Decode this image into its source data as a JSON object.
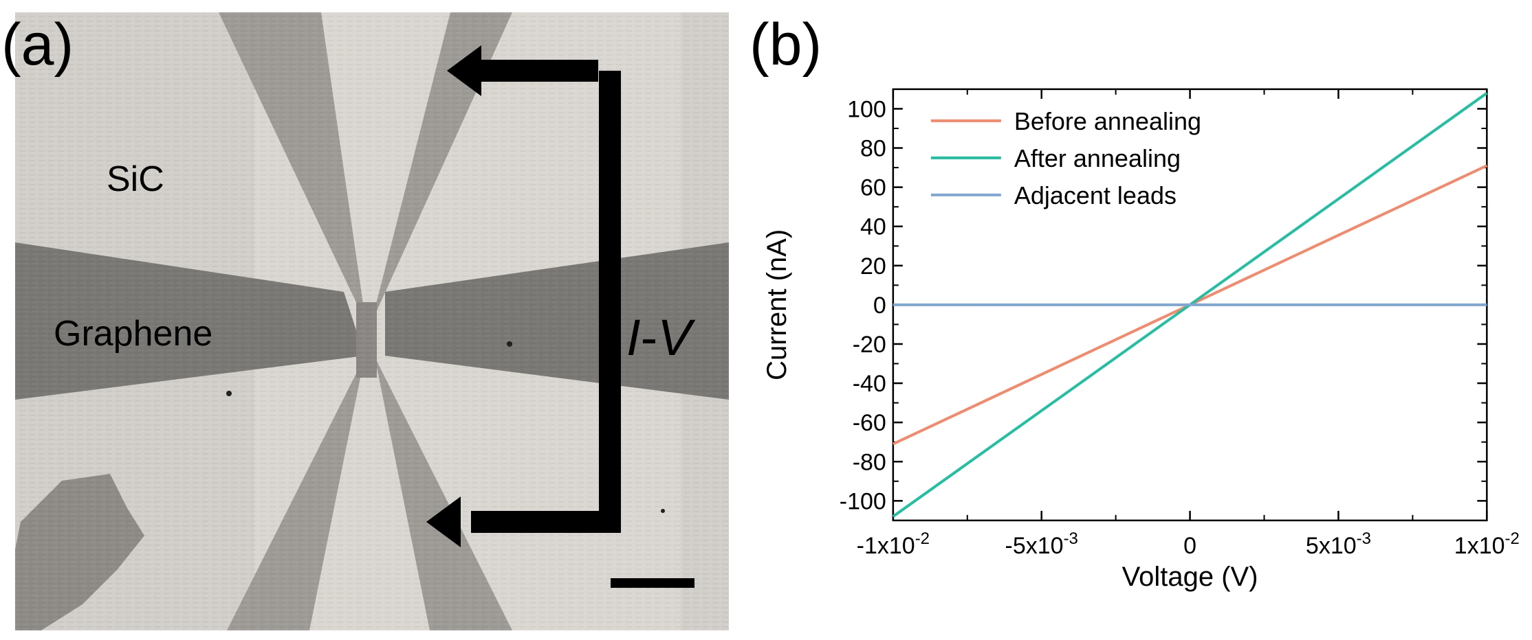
{
  "panel_a": {
    "label": "(a)",
    "substrate_label": "SiC",
    "film_label": "Graphene",
    "iv_label_i": "I",
    "iv_label_dash": "-",
    "iv_label_v": "V",
    "scale_bar_icon": "scale-bar"
  },
  "panel_b": {
    "label": "(b)"
  },
  "chart_data": {
    "type": "line",
    "xlabel": "Voltage (V)",
    "ylabel": "Current (nA)",
    "xlim": [
      -0.01,
      0.01
    ],
    "ylim": [
      -110,
      110
    ],
    "xticks": [
      {
        "value": -0.01,
        "mant": "-1x10",
        "exp": "-2"
      },
      {
        "value": -0.005,
        "mant": "-5x10",
        "exp": "-3"
      },
      {
        "value": 0,
        "mant": "0",
        "exp": ""
      },
      {
        "value": 0.005,
        "mant": "5x10",
        "exp": "-3"
      },
      {
        "value": 0.01,
        "mant": "1x10",
        "exp": "-2"
      }
    ],
    "yticks": [
      -100,
      -80,
      -60,
      -40,
      -20,
      0,
      20,
      40,
      60,
      80,
      100
    ],
    "grid": false,
    "legend_position": "top-left",
    "series": [
      {
        "name": "Before annealing",
        "color": "#f4896b",
        "x": [
          -0.01,
          0.01
        ],
        "y": [
          -71,
          71
        ]
      },
      {
        "name": "After annealing",
        "color": "#22bfa2",
        "x": [
          -0.01,
          0.01
        ],
        "y": [
          -108,
          108
        ]
      },
      {
        "name": "Adjacent leads",
        "color": "#7fa7d3",
        "x": [
          -0.01,
          0.01
        ],
        "y": [
          0,
          0
        ]
      }
    ]
  }
}
